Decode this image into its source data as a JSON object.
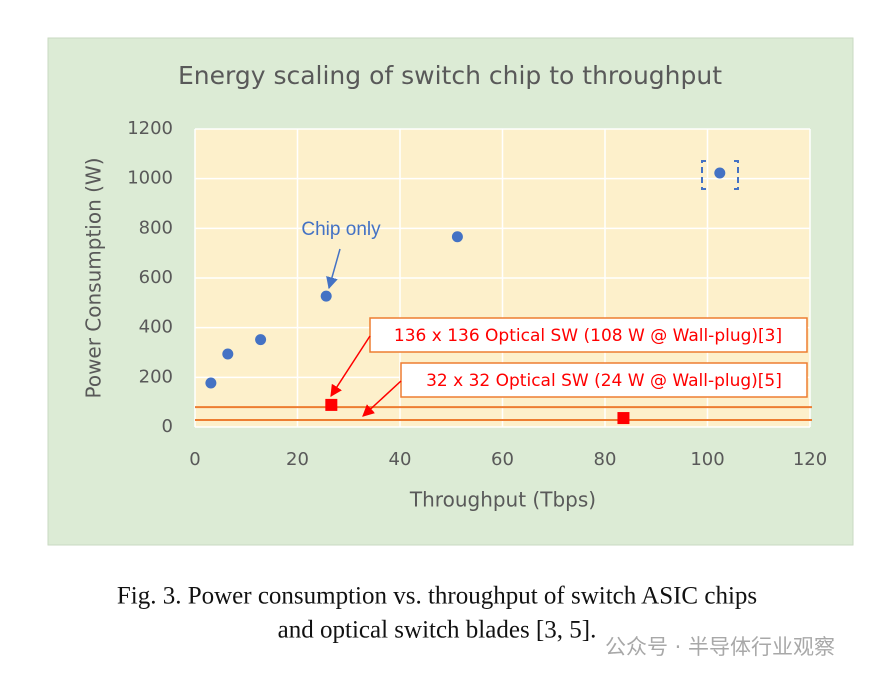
{
  "chart_data": {
    "type": "scatter",
    "title": "Energy scaling of switch chip to throughput",
    "x_label": "Throughput (Tbps)",
    "y_label": "Power Consumption (W)",
    "xlim": [
      0,
      120
    ],
    "xticks": [
      0,
      20,
      40,
      60,
      80,
      100,
      120
    ],
    "ylim": [
      0,
      1200
    ],
    "yticks": [
      0,
      200,
      400,
      600,
      800,
      1000,
      1200
    ],
    "grid": true,
    "series": [
      {
        "color": "#4472c4",
        "marker": "circle",
        "x": [
          3.1,
          6.4,
          12.8,
          25.6,
          51.2,
          102.4
        ],
        "values": [
          177,
          294,
          352,
          527,
          766,
          1023
        ]
      },
      {
        "color": "#ff0000",
        "marker": "square",
        "x": [
          26.6,
          83.6
        ],
        "values": [
          89,
          36
        ]
      }
    ],
    "hlines": [
      {
        "value": 80,
        "color": "#ed7d31"
      },
      {
        "value": 28,
        "color": "#ed7d31"
      }
    ],
    "annotations": [
      "Chip only",
      "136 x 136 Optical SW (108 W @ Wall-plug)[3]",
      "32 x 32 Optical SW (24 W @ Wall-plug)[5]"
    ]
  },
  "caption": [
    "Fig. 3. Power consumption vs. throughput of switch ASIC chips",
    "and optical switch blades [3, 5]."
  ],
  "watermark": "公众号 · 半导体行业观察"
}
